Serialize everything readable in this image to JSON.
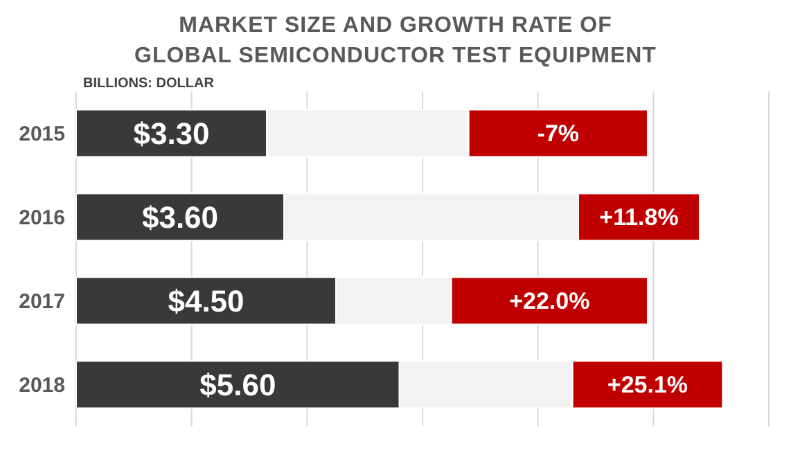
{
  "chart_data": {
    "type": "bar",
    "title": "MARKET SIZE AND GROWTH RATE OF GLOBAL SEMICONDUCTOR TEST EQUIPMENT",
    "annotations": [
      "BILLIONS: DOLLAR",
      "-7%",
      "+11.8%",
      "+22.0%",
      "+25.1%"
    ],
    "orientation": "horizontal",
    "stacked": true,
    "categories": [
      "2015",
      "2016",
      "2017",
      "2018"
    ],
    "series": [
      {
        "color": "#3a3838",
        "values": [
          3.3,
          3.6,
          4.5,
          5.6
        ],
        "value_labels": [
          "$3.30",
          "$3.60",
          "$4.50",
          "$5.60"
        ]
      },
      {
        "color": "#f2f2f2",
        "values": [
          3.5,
          5.1,
          2.0,
          3.0
        ]
      },
      {
        "color": "#c00000",
        "values": [
          3.1,
          2.1,
          3.4,
          2.6
        ]
      }
    ],
    "xlim": [
      0,
      12
    ],
    "xticks": [
      {
        "value": 0,
        "label": null
      },
      {
        "value": 2,
        "label": null
      },
      {
        "value": 4,
        "label": null
      },
      {
        "value": 6,
        "label": null
      },
      {
        "value": 8,
        "label": null
      },
      {
        "value": 10,
        "label": null
      },
      {
        "value": 12,
        "label": null
      }
    ],
    "tick_labels": "y",
    "grid": "x",
    "legend": false
  }
}
